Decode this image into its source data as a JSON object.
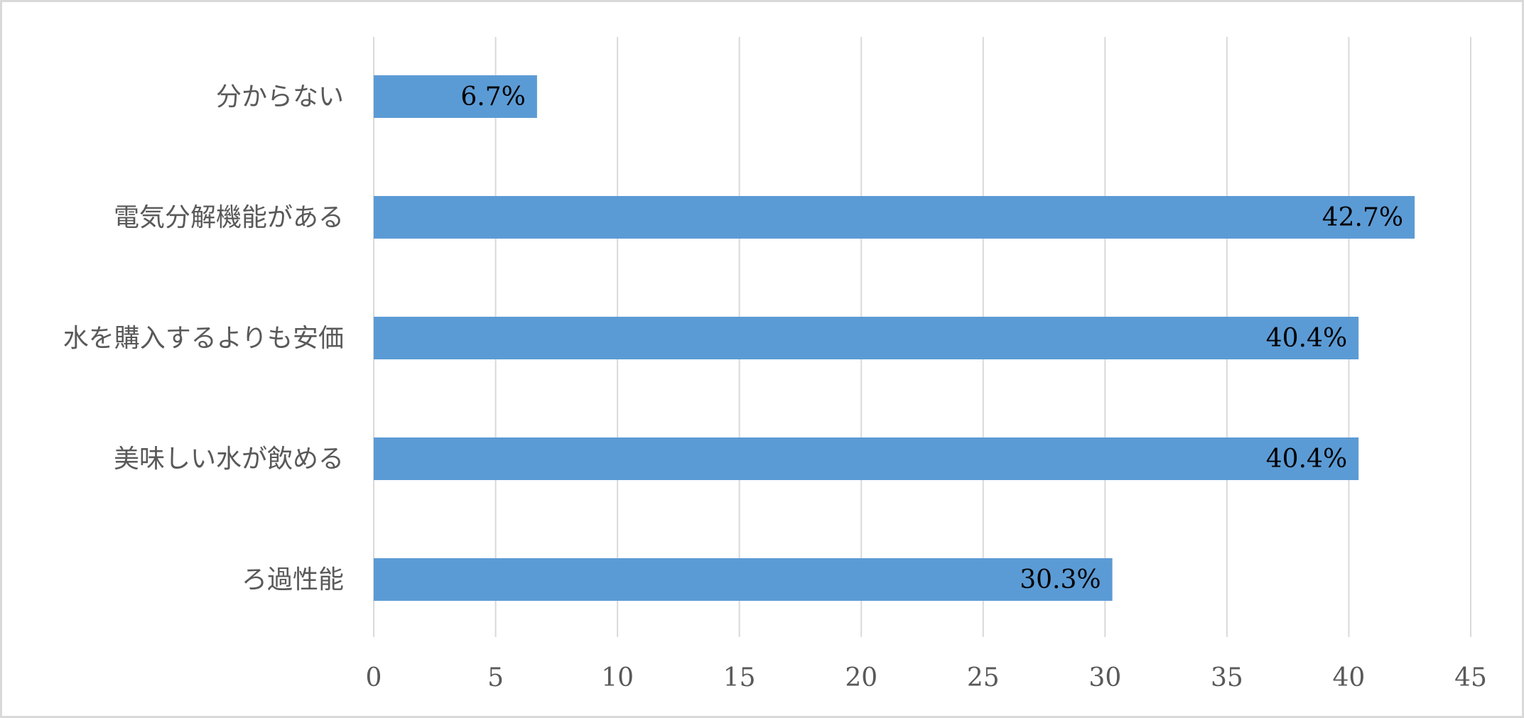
{
  "chart_data": {
    "type": "bar",
    "orientation": "horizontal",
    "title": "",
    "xlabel": "",
    "ylabel": "",
    "categories": [
      "分からない",
      "電気分解機能がある",
      "水を購入するよりも安価",
      "美味しい水が飲める",
      "ろ過性能"
    ],
    "values": [
      6.7,
      42.7,
      40.4,
      40.4,
      30.3
    ],
    "data_labels": [
      "6.7%",
      "42.7%",
      "40.4%",
      "40.4%",
      "30.3%"
    ],
    "xlim": [
      0,
      45
    ],
    "xticks": [
      0,
      5,
      10,
      15,
      20,
      25,
      30,
      35,
      40,
      45
    ],
    "xtick_labels": [
      "0",
      "5",
      "10",
      "15",
      "20",
      "25",
      "30",
      "35",
      "40",
      "45"
    ],
    "grid": "vertical",
    "legend": "none",
    "bar_color": "#5b9bd5",
    "grid_color": "#d9d9d9",
    "frame_color": "#d9d9d9"
  }
}
